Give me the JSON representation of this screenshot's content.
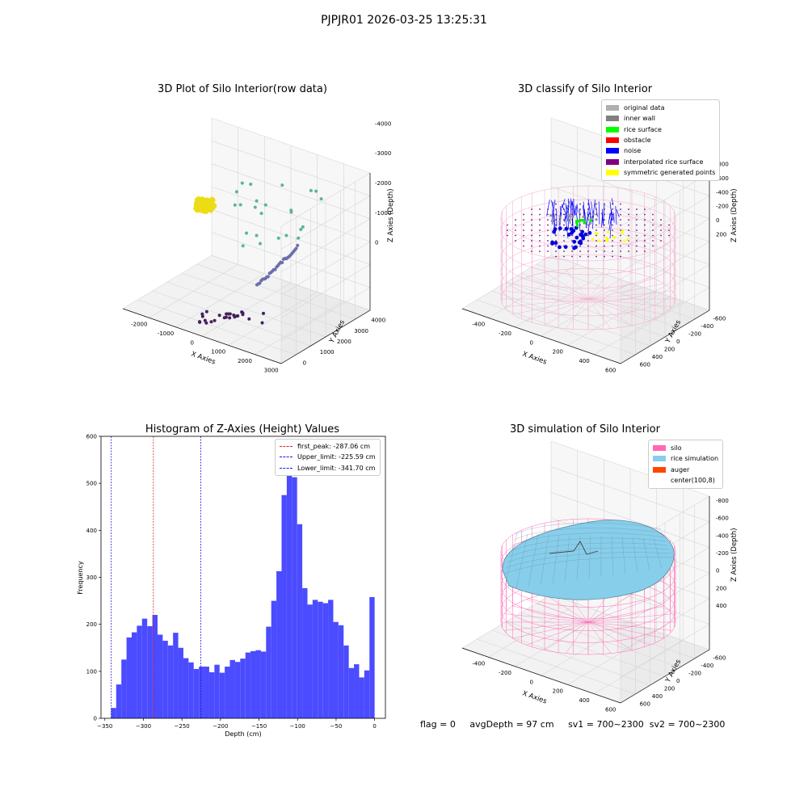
{
  "suptitle": "PJPJR01 2026-03-25 13:25:31",
  "chart_data": [
    {
      "type": "scatter",
      "title": "3D Plot of Silo Interior(row data)",
      "xlabel": "X Axies",
      "ylabel": "Y Axies",
      "zlabel": "Z Axies (Depth)",
      "x_ticks": [
        "-2000",
        "-1000",
        "0",
        "1000",
        "2000",
        "3000"
      ],
      "y_ticks": [
        "0",
        "1000",
        "2000",
        "3000",
        "4000"
      ],
      "z_ticks": [
        "0",
        "-1000",
        "-2000",
        "-3000",
        "-4000"
      ],
      "grid": true
    },
    {
      "type": "scatter",
      "title": "3D classify of Silo Interior",
      "xlabel": "X Axies",
      "ylabel": "Y Axies",
      "zlabel": "Z Axies (Depth)",
      "x_ticks": [
        "-400",
        "-200",
        "0",
        "200",
        "400",
        "600"
      ],
      "y_ticks": [
        "600",
        "400",
        "200",
        "0",
        "-200",
        "-400",
        "-600"
      ],
      "z_ticks": [
        "200",
        "0",
        "-200",
        "-400",
        "-600",
        "-800"
      ],
      "legend": [
        {
          "label": "original data",
          "color": "#b0b0b0"
        },
        {
          "label": "inner wall",
          "color": "#808080"
        },
        {
          "label": "rice surface",
          "color": "#00ff00"
        },
        {
          "label": "obstacle",
          "color": "#ff0000"
        },
        {
          "label": "noise",
          "color": "#0000ff"
        },
        {
          "label": "interpolated rice surface",
          "color": "#800080"
        },
        {
          "label": "symmetric generated points",
          "color": "#ffff00"
        }
      ],
      "legend_position": "top-right",
      "grid": true
    },
    {
      "type": "bar",
      "title": "Histogram of Z-Axies (Height) Values",
      "xlabel": "Depth (cm)",
      "ylabel": "Frequency",
      "x_ticks": [
        "−350",
        "−300",
        "−250",
        "−200",
        "−150",
        "−100",
        "−50",
        "0"
      ],
      "y_ticks": [
        "0",
        "100",
        "200",
        "300",
        "400",
        "500",
        "600"
      ],
      "xlim": [
        -355,
        14
      ],
      "ylim": [
        0,
        600
      ],
      "bin_range": [
        -342,
        0
      ],
      "values": [
        22,
        72,
        125,
        172,
        183,
        197,
        212,
        196,
        220,
        178,
        165,
        155,
        182,
        150,
        128,
        119,
        105,
        110,
        110,
        98,
        114,
        97,
        110,
        124,
        120,
        127,
        140,
        143,
        145,
        142,
        195,
        250,
        313,
        475,
        570,
        513,
        413,
        277,
        242,
        252,
        248,
        245,
        252,
        205,
        198,
        155,
        107,
        115,
        87,
        102,
        258
      ],
      "bar_color": "#4b4bff",
      "vlines": [
        {
          "label": "first_peak: -287.06 cm",
          "x": -287.06,
          "color": "#e02020"
        },
        {
          "label": "Upper_limit: -225.59 cm",
          "x": -225.59,
          "color": "#1818e0"
        },
        {
          "label": "Lower_limit: -341.70 cm",
          "x": -341.7,
          "color": "#1818e0"
        }
      ],
      "legend_position": "top-right"
    },
    {
      "type": "scatter",
      "title": "3D simulation of Silo Interior",
      "xlabel": "X Axies",
      "ylabel": "Y Axies",
      "zlabel": "Z Axies (Depth)",
      "x_ticks": [
        "-400",
        "-200",
        "0",
        "200",
        "400",
        "600"
      ],
      "y_ticks": [
        "600",
        "400",
        "200",
        "0",
        "-200",
        "-400",
        "-600"
      ],
      "z_ticks": [
        "400",
        "200",
        "0",
        "-200",
        "-400",
        "-600",
        "-800"
      ],
      "legend": [
        {
          "label": "silo",
          "color": "#ff69b4"
        },
        {
          "label": "rice simulation",
          "color": "#87ceeb"
        },
        {
          "label": "auger",
          "color": "#ff4500"
        },
        {
          "label": "center(100,8)",
          "color": "#ffffff"
        }
      ],
      "legend_position": "top-right",
      "grid": true
    }
  ],
  "footer": {
    "flag": "flag = 0",
    "avg_depth": "avgDepth = 97 cm",
    "sv1": "sv1 = 700~2300",
    "sv2": "sv2 = 700~2300"
  }
}
